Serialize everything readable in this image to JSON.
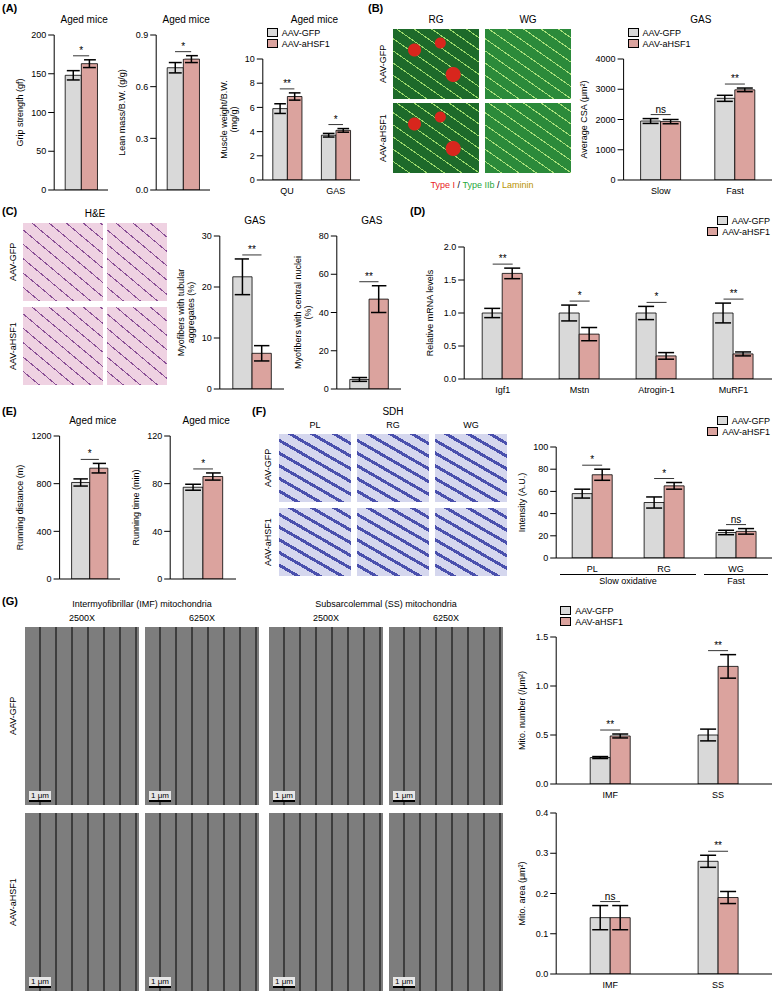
{
  "chart_data": [
    {
      "type": "bar",
      "title": "Aged mice",
      "y_label": "Grip strength (gf)",
      "categories": [
        null
      ],
      "series": [
        {
          "name": "AAV-GFP",
          "color": "#d9d9d9",
          "values": [
            148
          ],
          "errors": [
            6
          ]
        },
        {
          "name": "AAV-aHSF1",
          "color": "#dba39e",
          "values": [
            163
          ],
          "errors": [
            5
          ]
        }
      ],
      "ylim": [
        0,
        200
      ],
      "yticks": [
        0,
        50,
        100,
        150,
        200
      ],
      "annotations": [
        "*"
      ]
    },
    {
      "type": "bar",
      "title": "Aged mice",
      "y_label": "Lean mass/B.W. (g/g)",
      "categories": [
        null
      ],
      "series": [
        {
          "name": "AAV-GFP",
          "color": "#d9d9d9",
          "values": [
            0.71
          ],
          "errors": [
            0.03
          ]
        },
        {
          "name": "AAV-aHSF1",
          "color": "#dba39e",
          "values": [
            0.76
          ],
          "errors": [
            0.02
          ]
        }
      ],
      "ylim": [
        0,
        0.9
      ],
      "yticks": [
        {
          "value": 0,
          "label": "0.0"
        },
        0.3,
        0.6,
        0.9
      ],
      "annotations": [
        "*"
      ]
    },
    {
      "type": "bar",
      "title": "Aged mice",
      "y_label": "Muscle weight/B.W. (mg/g)",
      "categories": [
        "QU",
        "GAS"
      ],
      "series": [
        {
          "name": "AAV-GFP",
          "color": "#d9d9d9",
          "values": [
            5.9,
            3.7
          ],
          "errors": [
            0.4,
            0.15
          ]
        },
        {
          "name": "AAV-aHSF1",
          "color": "#dba39e",
          "values": [
            6.9,
            4.1
          ],
          "errors": [
            0.3,
            0.15
          ]
        }
      ],
      "ylim": [
        0,
        10
      ],
      "yticks": [
        0,
        2,
        4,
        6,
        8,
        10
      ],
      "annotations": [
        "**",
        "*"
      ],
      "legend": "top left"
    },
    {
      "type": "bar",
      "title": "GAS",
      "y_label": "Average CSA (μm²)",
      "categories": [
        "Slow",
        "Fast"
      ],
      "series": [
        {
          "name": "AAV-GFP",
          "color": "#d9d9d9",
          "values": [
            1950,
            2700
          ],
          "errors": [
            80,
            100
          ]
        },
        {
          "name": "AAV-aHSF1",
          "color": "#dba39e",
          "values": [
            1930,
            2980
          ],
          "errors": [
            70,
            60
          ]
        }
      ],
      "ylim": [
        0,
        4000
      ],
      "yticks": [
        0,
        1000,
        2000,
        3000,
        4000
      ],
      "annotations": [
        "ns",
        "**"
      ],
      "legend": "top left"
    },
    {
      "type": "bar",
      "title": "GAS",
      "y_label": "Myofibers with tubular aggregates (%)",
      "categories": [
        null
      ],
      "series": [
        {
          "name": "AAV-GFP",
          "color": "#d9d9d9",
          "values": [
            22
          ],
          "errors": [
            3.5
          ]
        },
        {
          "name": "AAV-aHSF1",
          "color": "#dba39e",
          "values": [
            7
          ],
          "errors": [
            1.5
          ]
        }
      ],
      "ylim": [
        0,
        30
      ],
      "yticks": [
        0,
        10,
        20,
        30
      ],
      "annotations": [
        "**"
      ]
    },
    {
      "type": "bar",
      "title": "GAS",
      "y_label": "Myofibers with central nuclei (%)",
      "categories": [
        null
      ],
      "series": [
        {
          "name": "AAV-GFP",
          "color": "#d9d9d9",
          "values": [
            5
          ],
          "errors": [
            1
          ]
        },
        {
          "name": "AAV-aHSF1",
          "color": "#dba39e",
          "values": [
            47
          ],
          "errors": [
            7
          ]
        }
      ],
      "ylim": [
        0,
        80
      ],
      "yticks": [
        0,
        20,
        40,
        60,
        80
      ],
      "annotations": [
        "**"
      ]
    },
    {
      "type": "bar",
      "y_label": "Relative mRNA levels",
      "categories": [
        "Igf1",
        "Mstn",
        "Atrogin-1",
        "MuRF1"
      ],
      "series": [
        {
          "name": "AAV-GFP",
          "color": "#d9d9d9",
          "values": [
            1.0,
            1.0,
            1.0,
            1.0
          ],
          "errors": [
            0.07,
            0.12,
            0.1,
            0.15
          ]
        },
        {
          "name": "AAV-aHSF1",
          "color": "#dba39e",
          "values": [
            1.6,
            0.68,
            0.35,
            0.38
          ],
          "errors": [
            0.08,
            0.1,
            0.05,
            0.03
          ]
        }
      ],
      "ylim": [
        0,
        2
      ],
      "yticks": [
        {
          "value": 0,
          "label": "0.0"
        },
        0.5,
        {
          "value": 1,
          "label": "1.0"
        },
        1.5,
        {
          "value": 2,
          "label": "2.0"
        }
      ],
      "annotations": [
        "**",
        "*",
        "*",
        "**"
      ],
      "legend": "top right"
    },
    {
      "type": "bar",
      "title": "Aged mice",
      "y_label": "Running distance (m)",
      "categories": [
        null
      ],
      "series": [
        {
          "name": "AAV-GFP",
          "color": "#d9d9d9",
          "values": [
            810
          ],
          "errors": [
            30
          ]
        },
        {
          "name": "AAV-aHSF1",
          "color": "#dba39e",
          "values": [
            930
          ],
          "errors": [
            40
          ]
        }
      ],
      "ylim": [
        0,
        1200
      ],
      "yticks": [
        0,
        400,
        800,
        1200
      ],
      "annotations": [
        "*"
      ]
    },
    {
      "type": "bar",
      "title": "Aged mice",
      "y_label": "Running time (min)",
      "categories": [
        null
      ],
      "series": [
        {
          "name": "AAV-GFP",
          "color": "#d9d9d9",
          "values": [
            77
          ],
          "errors": [
            2.5
          ]
        },
        {
          "name": "AAV-aHSF1",
          "color": "#dba39e",
          "values": [
            86
          ],
          "errors": [
            3
          ]
        }
      ],
      "ylim": [
        0,
        120
      ],
      "yticks": [
        0,
        40,
        80,
        120
      ],
      "annotations": [
        "*"
      ]
    },
    {
      "type": "bar",
      "y_label": "Intensity (A.U.)",
      "categories": [
        "PL",
        "RG",
        "WG"
      ],
      "series": [
        {
          "name": "AAV-GFP",
          "color": "#d9d9d9",
          "values": [
            58,
            50,
            23
          ],
          "errors": [
            4,
            5,
            2
          ]
        },
        {
          "name": "AAV-aHSF1",
          "color": "#dba39e",
          "values": [
            75,
            65,
            24
          ],
          "errors": [
            5,
            3,
            2.5
          ]
        }
      ],
      "ylim": [
        0,
        100
      ],
      "yticks": [
        0,
        20,
        40,
        60,
        80,
        100
      ],
      "annotations": [
        "*",
        "*",
        "ns"
      ],
      "legend": "top right",
      "group_labels": [
        {
          "label": "Slow oxidative",
          "categories": [
            "PL",
            "RG"
          ]
        },
        {
          "label": "Fast",
          "categories": [
            "WG"
          ]
        }
      ]
    },
    {
      "type": "bar",
      "y_label": "Mito. number (/μm²)",
      "categories": [
        "IMF",
        "SS"
      ],
      "series": [
        {
          "name": "AAV-GFP",
          "color": "#d9d9d9",
          "values": [
            0.27,
            0.5
          ],
          "errors": [
            0.01,
            0.06
          ]
        },
        {
          "name": "AAV-aHSF1",
          "color": "#dba39e",
          "values": [
            0.49,
            1.2
          ],
          "errors": [
            0.02,
            0.12
          ]
        }
      ],
      "ylim": [
        0,
        1.5
      ],
      "yticks": [
        {
          "value": 0,
          "label": "0.0"
        },
        0.5,
        {
          "value": 1,
          "label": "1.0"
        },
        1.5
      ],
      "annotations": [
        "**",
        "**"
      ],
      "legend": "top left"
    },
    {
      "type": "bar",
      "y_label": "Mito. area (μm²)",
      "categories": [
        "IMF",
        "SS"
      ],
      "series": [
        {
          "name": "AAV-GFP",
          "color": "#d9d9d9",
          "values": [
            0.14,
            0.28
          ],
          "errors": [
            0.03,
            0.015
          ]
        },
        {
          "name": "AAV-aHSF1",
          "color": "#dba39e",
          "values": [
            0.14,
            0.19
          ],
          "errors": [
            0.03,
            0.015
          ]
        }
      ],
      "ylim": [
        0,
        0.4
      ],
      "yticks": [
        {
          "value": 0,
          "label": "0.0"
        },
        0.1,
        0.2,
        0.3,
        0.4
      ],
      "annotations": [
        "ns",
        "**"
      ]
    }
  ],
  "figure": {
    "panel_letters": [
      "(A)",
      "(B)",
      "(C)",
      "(D)",
      "(E)",
      "(F)",
      "(G)"
    ],
    "B_images": {
      "columns": [
        "RG",
        "WG"
      ],
      "rows": [
        "AAV-GFP",
        "AAV-aHSF1"
      ],
      "caption": [
        {
          "text": "Type I",
          "color": "#e8231c"
        },
        {
          "text": "Type IIb",
          "color": "#1fa83c"
        },
        {
          "text": "Laminin",
          "color": "#b89200"
        }
      ],
      "separator": " / "
    },
    "C_images": {
      "title": "H&E",
      "rows": [
        "AAV-GFP",
        "AAV-aHSF1"
      ]
    },
    "F_images": {
      "title": "SDH",
      "columns": [
        "PL",
        "RG",
        "WG"
      ],
      "rows": [
        "AAV-GFP",
        "AAV-aHSF1"
      ]
    },
    "G_images": {
      "groups": [
        {
          "title": "Intermyofibrillar (IMF) mitochondria",
          "columns": [
            "2500X",
            "6250X"
          ]
        },
        {
          "title": "Subsarcolemmal (SS) mitochondria",
          "columns": [
            "2500X",
            "6250X"
          ]
        }
      ],
      "rows": [
        "AAV-GFP",
        "AAV-aHSF1"
      ],
      "scale_bar": "1 μm"
    }
  }
}
